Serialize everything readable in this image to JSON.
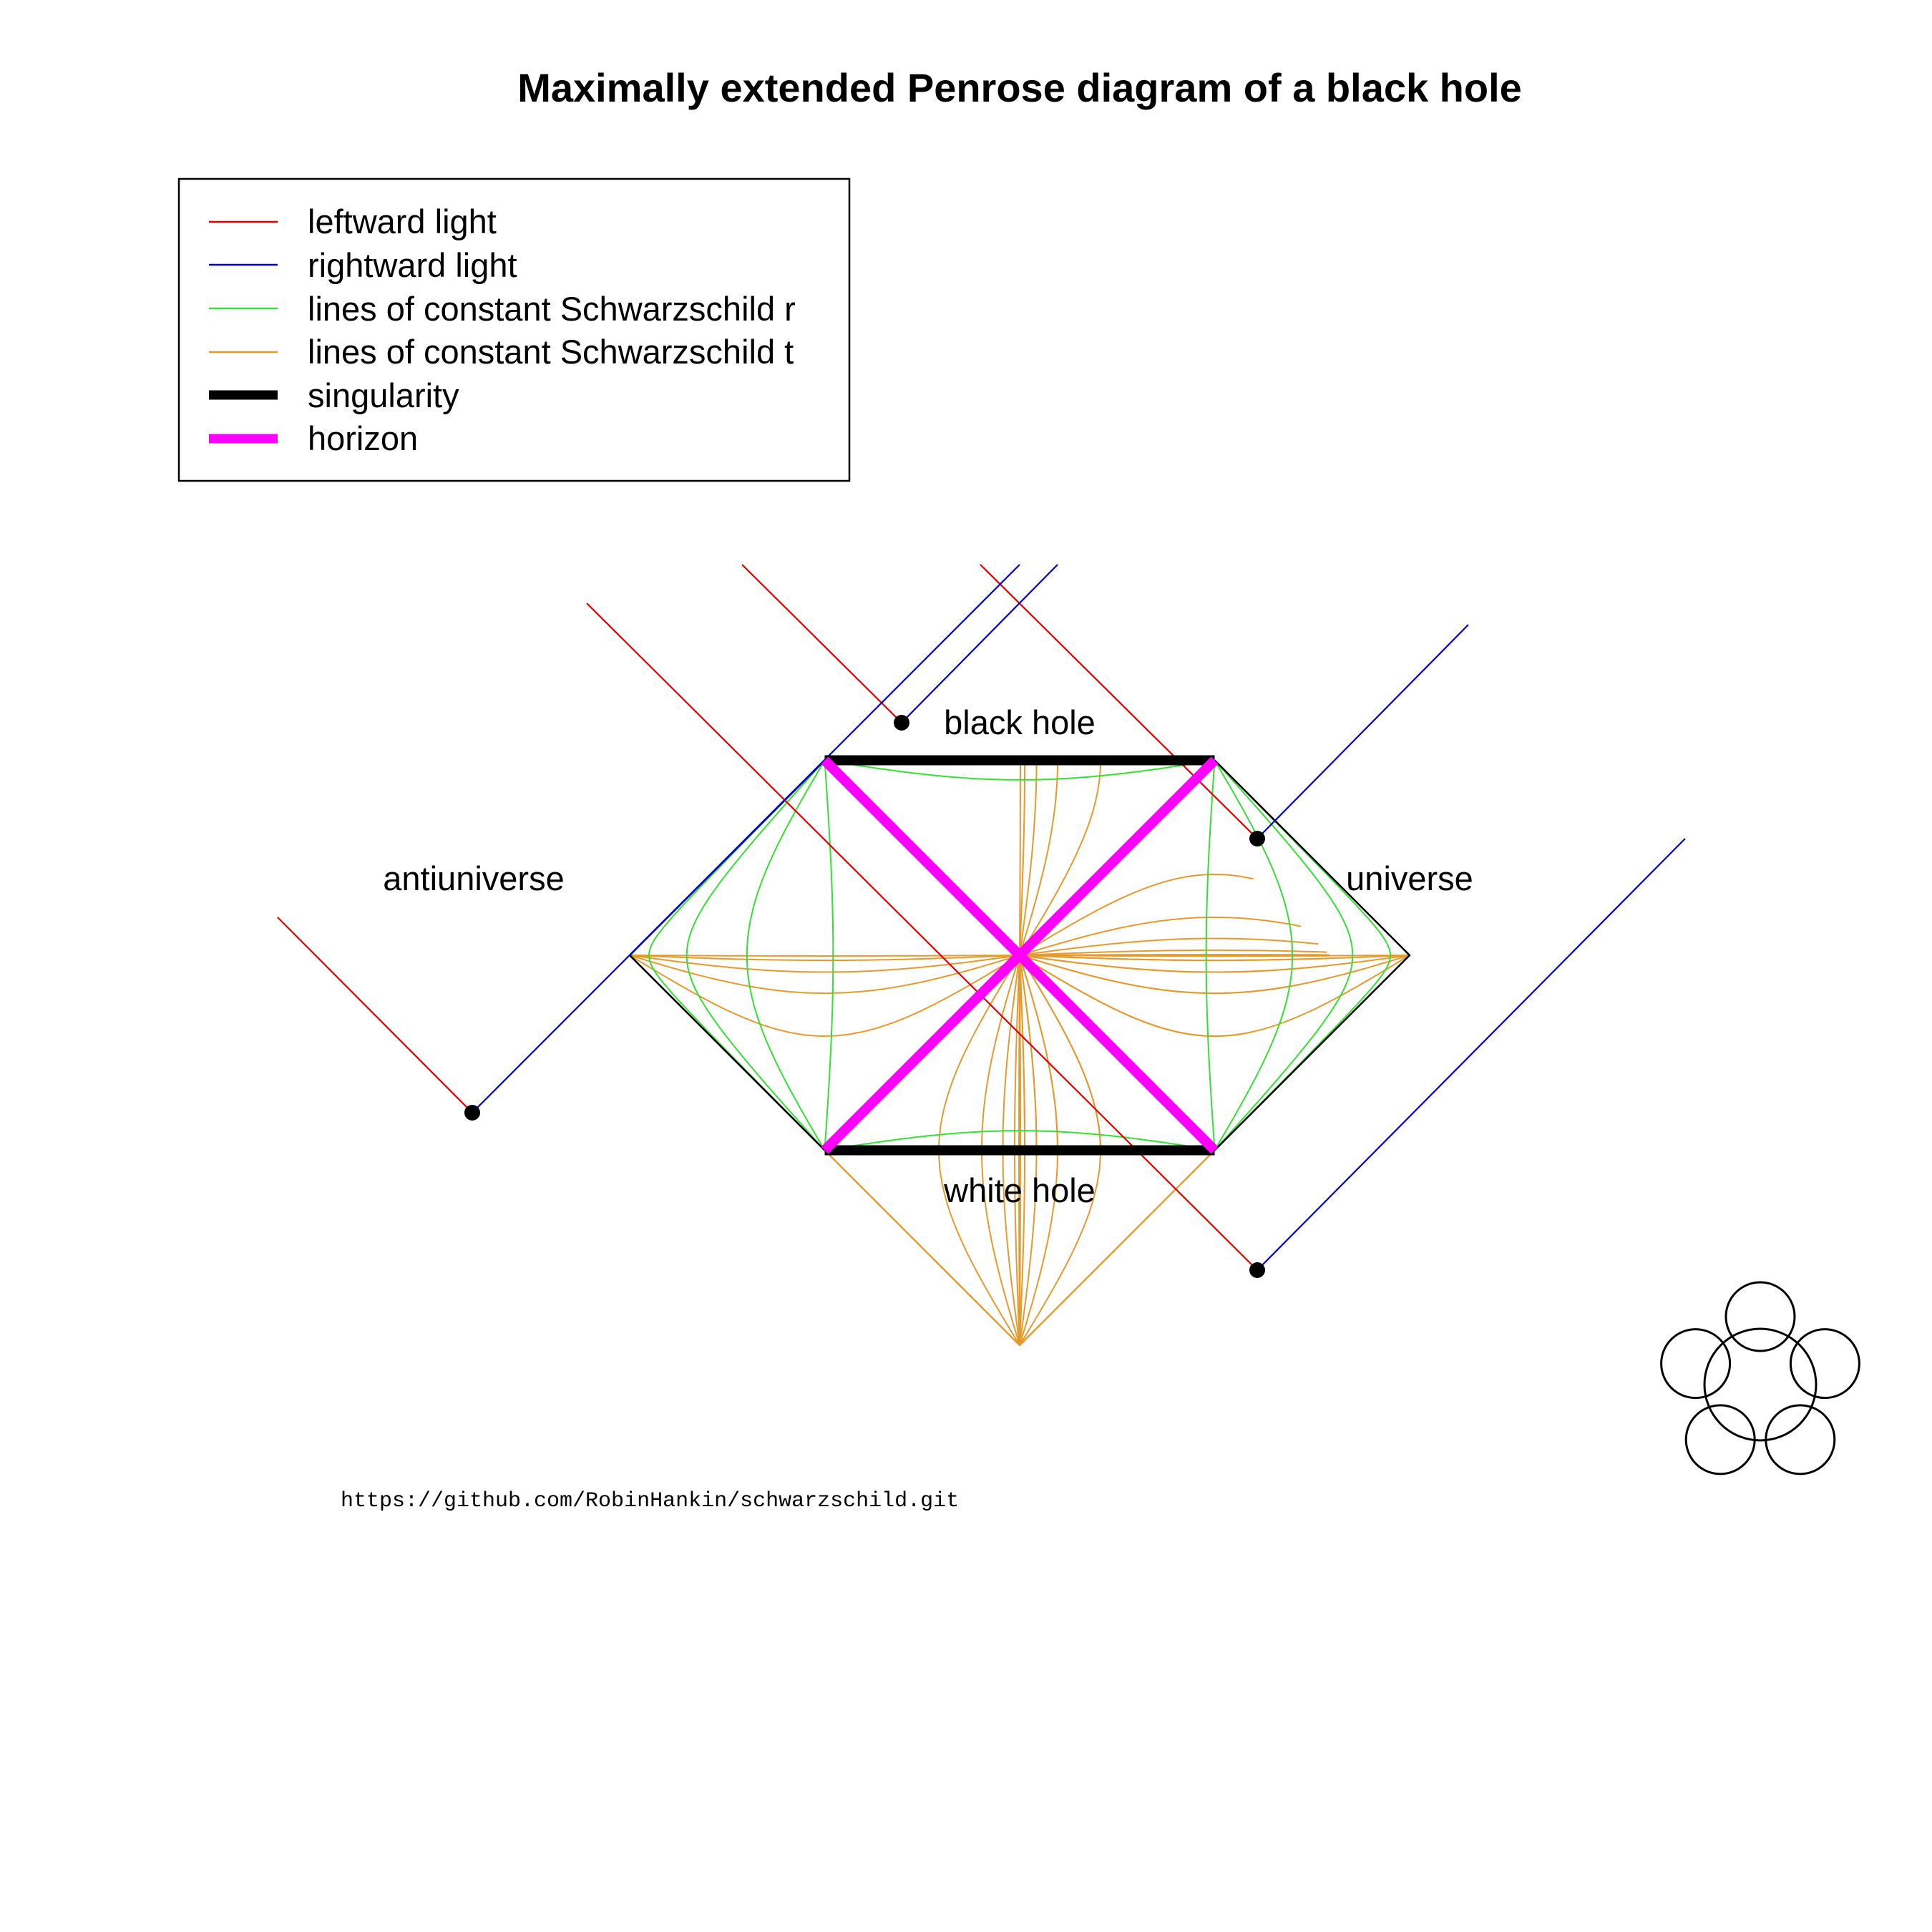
{
  "title": "Maximally extended Penrose diagram of a black hole",
  "legend": [
    {
      "label": "leftward light",
      "color": "#e00000",
      "style": "thin"
    },
    {
      "label": "rightward light",
      "color": "#0000d0",
      "style": "thin"
    },
    {
      "label": "lines of constant Schwarzschild r",
      "color": "#33e033",
      "style": "thin"
    },
    {
      "label": "lines of constant Schwarzschild t",
      "color": "#e39a2e",
      "style": "thin"
    },
    {
      "label": "singularity",
      "color": "#000000",
      "style": "thick"
    },
    {
      "label": "horizon",
      "color": "#ff00ff",
      "style": "thick"
    }
  ],
  "regions": {
    "black_hole": "black hole",
    "white_hole": "white hole",
    "universe": "universe",
    "antiuniverse": "antiuniverse"
  },
  "source_url": "https://github.com/RobinHankin/schwarzschild.git",
  "colors": {
    "leftward_light": "#e00000",
    "rightward_light": "#0000d0",
    "constant_r": "#33e033",
    "constant_t": "#e39a2e",
    "singularity": "#000000",
    "horizon": "#ff00ff",
    "boundary": "#000000"
  },
  "logo": "knot-icon"
}
